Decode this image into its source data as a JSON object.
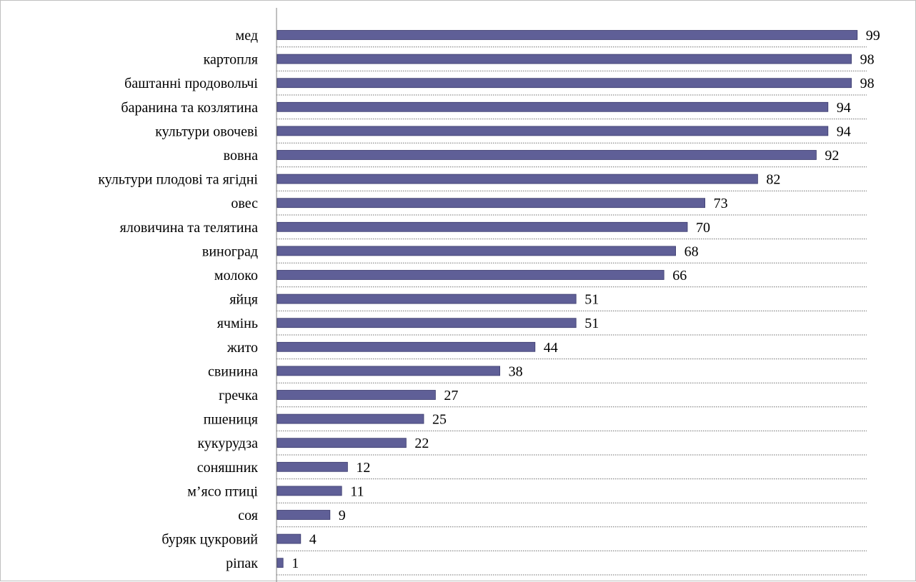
{
  "chart_data": {
    "type": "bar",
    "orientation": "horizontal",
    "categories": [
      "мед",
      "картопля",
      "баштанні продовольчі",
      "баранина та козлятина",
      "культури овочеві ",
      "вовна",
      "культури плодові та ягідні",
      "овес",
      "яловичина та телятина",
      "виноград",
      "молоко ",
      "яйця ",
      "ячмінь",
      "жито",
      "свинина",
      "гречка",
      "пшениця",
      "кукурудза ",
      "соняшник",
      "м’ясо птиці",
      "соя",
      "буряк цукровий",
      "ріпак"
    ],
    "values": [
      99,
      98,
      98,
      94,
      94,
      92,
      82,
      73,
      70,
      68,
      66,
      51,
      51,
      44,
      38,
      27,
      25,
      22,
      12,
      11,
      9,
      4,
      1
    ],
    "xlim": [
      0,
      100
    ],
    "grid": "horizontal dotted",
    "legend": "none",
    "colors": {
      "bar": "#5f5f97",
      "bar_edge": "#3c3c6e",
      "axis": "#808080",
      "grid": "#6e6e6e"
    }
  }
}
